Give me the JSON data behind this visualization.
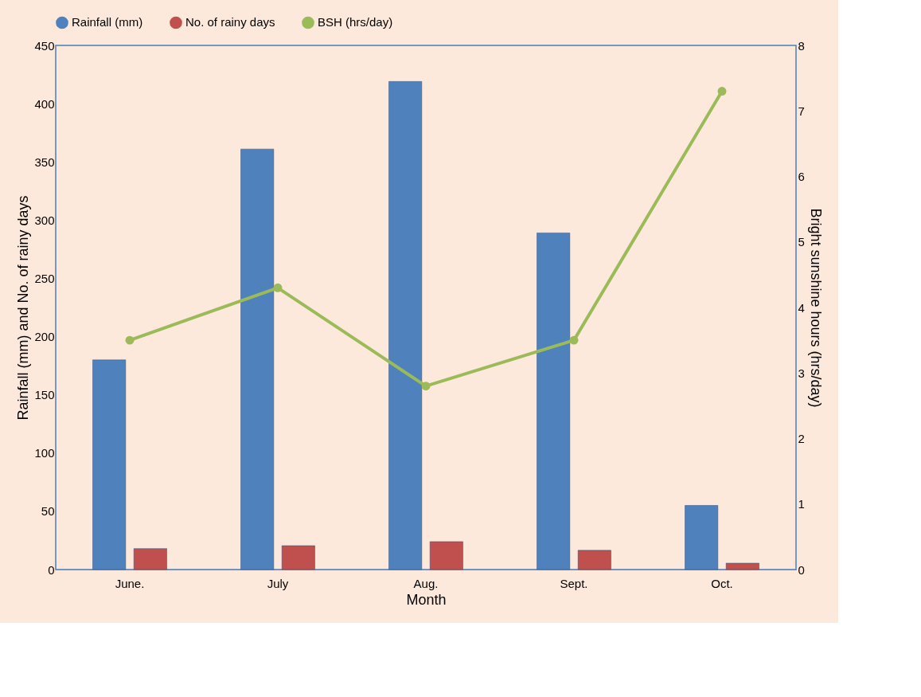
{
  "chart_data": {
    "type": "bar",
    "xlabel": "Month",
    "ylabel": "Rainfall (mm) and No. of rainy days",
    "y2label": "Bright sunshine hours (hrs/day)",
    "categories": [
      "June.",
      "July",
      "Aug.",
      "Sept.",
      "Oct."
    ],
    "series": [
      {
        "name": "Rainfall (mm)",
        "color": "#4f81bd",
        "values": [
          180,
          361,
          419,
          289,
          55
        ]
      },
      {
        "name": "No. of rainy days",
        "color": "#c0504d",
        "values": [
          18,
          20.5,
          24,
          16.5,
          5.5
        ]
      },
      {
        "name": "BSH (hrs/day)",
        "type": "line",
        "axis": "y2",
        "color": "#9bbb59",
        "values": [
          3.5,
          4.3,
          2.8,
          3.5,
          7.3
        ]
      }
    ],
    "ylim": [
      0,
      450
    ],
    "yticks": [
      0,
      50,
      100,
      150,
      200,
      250,
      300,
      350,
      400,
      450
    ],
    "y2lim": [
      0,
      8
    ],
    "y2ticks": [
      0,
      1,
      2,
      3,
      4,
      5,
      6,
      7,
      8
    ],
    "legend": "top",
    "marker": "circle",
    "grid": false
  }
}
